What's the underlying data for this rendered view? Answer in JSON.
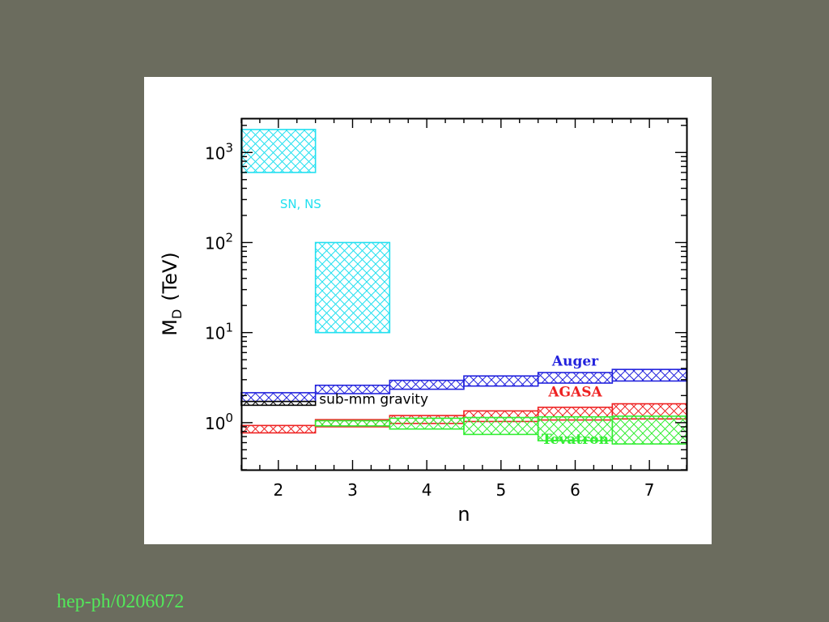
{
  "slide": {
    "citation": "hep-ph/0206072",
    "background_color": "#6b6c5e",
    "citation_color": "#53e85a"
  },
  "chart_data": {
    "type": "bar",
    "title": "",
    "xlabel": "n",
    "ylabel": "M",
    "ylabel_subscript": "D",
    "ylabel_unit": "(TeV)",
    "xlim": [
      1.5,
      7.5
    ],
    "ylim": [
      0.3,
      2400
    ],
    "yscale": "log",
    "xticks": [
      2,
      3,
      4,
      5,
      6,
      7
    ],
    "xtick_labels": [
      "2",
      "3",
      "4",
      "5",
      "6",
      "7"
    ],
    "yticks": [
      1,
      10,
      100,
      1000
    ],
    "ytick_labels": [
      {
        "base": "10",
        "exp": "0"
      },
      {
        "base": "10",
        "exp": "1"
      },
      {
        "base": "10",
        "exp": "2"
      },
      {
        "base": "10",
        "exp": "3"
      }
    ],
    "series": [
      {
        "name": "SN, NS",
        "color": "#22e0f0",
        "label_pos": {
          "x": 2.3,
          "y": 240
        },
        "bands": [
          {
            "x0": 1.5,
            "x1": 2.5,
            "y0": 600,
            "y1": 1800
          },
          {
            "x0": 2.5,
            "x1": 3.5,
            "y0": 10,
            "y1": 100
          }
        ]
      },
      {
        "name": "Auger",
        "color": "#2222dd",
        "label_pos": {
          "x": 6.0,
          "y": 4.3
        },
        "bands": [
          {
            "x0": 1.5,
            "x1": 2.5,
            "y0": 1.72,
            "y1": 2.15
          },
          {
            "x0": 2.5,
            "x1": 3.5,
            "y0": 2.1,
            "y1": 2.6
          },
          {
            "x0": 3.5,
            "x1": 4.5,
            "y0": 2.35,
            "y1": 2.95
          },
          {
            "x0": 4.5,
            "x1": 5.5,
            "y0": 2.55,
            "y1": 3.3
          },
          {
            "x0": 5.5,
            "x1": 6.5,
            "y0": 2.75,
            "y1": 3.6
          },
          {
            "x0": 6.5,
            "x1": 7.5,
            "y0": 2.9,
            "y1": 3.9
          }
        ]
      },
      {
        "name": "AGASA",
        "color": "#ee2222",
        "label_pos": {
          "x": 6.0,
          "y": 1.95
        },
        "bands": [
          {
            "x0": 1.5,
            "x1": 2.5,
            "y0": 0.77,
            "y1": 0.93
          },
          {
            "x0": 2.5,
            "x1": 3.5,
            "y0": 0.9,
            "y1": 1.08
          },
          {
            "x0": 3.5,
            "x1": 4.5,
            "y0": 0.98,
            "y1": 1.2
          },
          {
            "x0": 4.5,
            "x1": 5.5,
            "y0": 1.03,
            "y1": 1.35
          },
          {
            "x0": 5.5,
            "x1": 6.5,
            "y0": 1.07,
            "y1": 1.48
          },
          {
            "x0": 6.5,
            "x1": 7.5,
            "y0": 1.1,
            "y1": 1.62
          }
        ]
      },
      {
        "name": "Tevatron",
        "color": "#33ee33",
        "label_pos": {
          "x": 6.0,
          "y": 0.58
        },
        "bands": [
          {
            "x0": 2.5,
            "x1": 3.5,
            "y0": 0.92,
            "y1": 1.05
          },
          {
            "x0": 3.5,
            "x1": 4.5,
            "y0": 0.85,
            "y1": 1.12
          },
          {
            "x0": 4.5,
            "x1": 5.5,
            "y0": 0.74,
            "y1": 1.14
          },
          {
            "x0": 5.5,
            "x1": 6.5,
            "y0": 0.63,
            "y1": 1.16
          },
          {
            "x0": 6.5,
            "x1": 7.5,
            "y0": 0.58,
            "y1": 1.18
          }
        ]
      },
      {
        "name": "sub-mm gravity",
        "color": "#000000",
        "label_pos": {
          "x": 2.55,
          "y": 1.62
        },
        "bands": [
          {
            "x0": 1.5,
            "x1": 2.5,
            "y0": 1.56,
            "y1": 1.72
          }
        ]
      }
    ]
  }
}
